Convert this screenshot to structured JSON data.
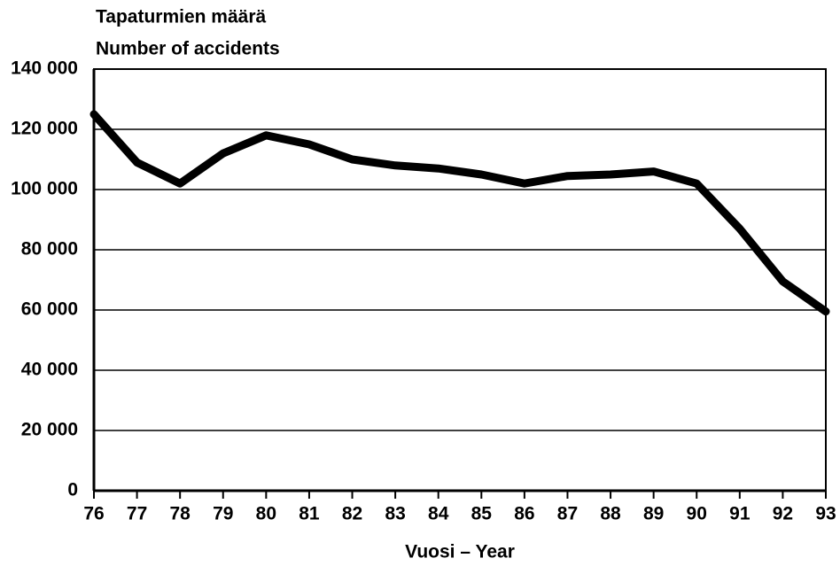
{
  "chart_data": {
    "type": "line",
    "y_label_lines": [
      "Tapaturmien määrä",
      "Number of accidents"
    ],
    "x_label": "Vuosi – Year",
    "categories": [
      "76",
      "77",
      "78",
      "79",
      "80",
      "81",
      "82",
      "83",
      "84",
      "85",
      "86",
      "87",
      "88",
      "89",
      "90",
      "91",
      "92",
      "93"
    ],
    "values": [
      125000,
      109000,
      102000,
      112000,
      118000,
      115000,
      110000,
      108000,
      107000,
      105000,
      102000,
      104500,
      105000,
      106000,
      102000,
      87000,
      69500,
      59500
    ],
    "color": "#000000",
    "ylim": [
      0,
      140000
    ],
    "yticks": [
      0,
      {
        "value": 20000,
        "label": "20 000"
      },
      {
        "value": 40000,
        "label": "40 000"
      },
      {
        "value": 60000,
        "label": "60 000"
      },
      {
        "value": 80000,
        "label": "80 000"
      },
      {
        "value": 100000,
        "label": "100 000"
      },
      {
        "value": 120000,
        "label": "120 000"
      },
      {
        "value": 140000,
        "label": "140 000"
      }
    ],
    "grid": true
  }
}
